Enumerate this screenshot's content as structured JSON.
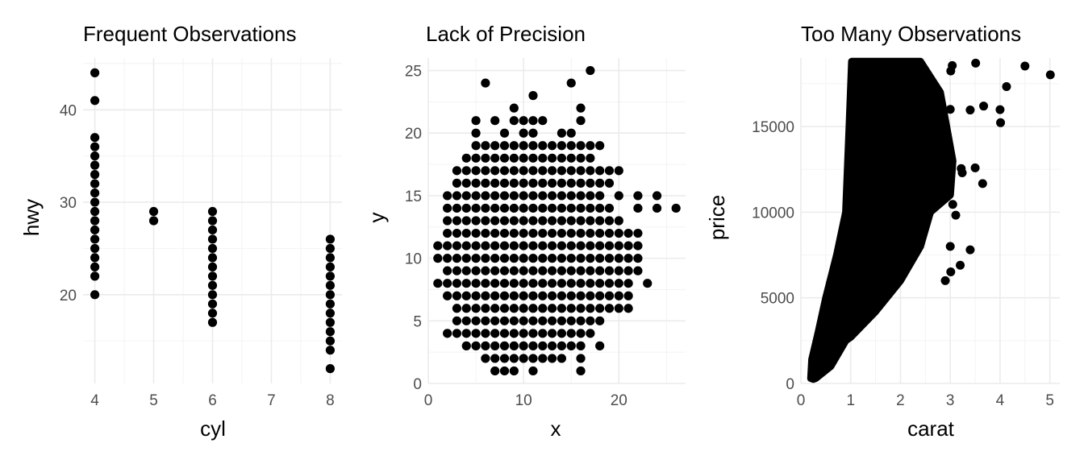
{
  "chart_data": [
    {
      "type": "scatter",
      "title": "Frequent Observations",
      "xlabel": "cyl",
      "ylabel": "hwy",
      "xlim": [
        3.8,
        8.2
      ],
      "ylim": [
        10.4,
        45.6
      ],
      "xticks": [
        4,
        5,
        6,
        7,
        8
      ],
      "yticks": [
        20,
        30,
        40
      ],
      "grid": true,
      "point_color": "#000000",
      "points": [
        [
          4,
          20
        ],
        [
          4,
          22
        ],
        [
          4,
          23
        ],
        [
          4,
          24
        ],
        [
          4,
          25
        ],
        [
          4,
          26
        ],
        [
          4,
          27
        ],
        [
          4,
          28
        ],
        [
          4,
          29
        ],
        [
          4,
          30
        ],
        [
          4,
          31
        ],
        [
          4,
          32
        ],
        [
          4,
          33
        ],
        [
          4,
          34
        ],
        [
          4,
          35
        ],
        [
          4,
          36
        ],
        [
          4,
          37
        ],
        [
          4,
          41
        ],
        [
          4,
          44
        ],
        [
          5,
          28
        ],
        [
          5,
          29
        ],
        [
          6,
          17
        ],
        [
          6,
          18
        ],
        [
          6,
          19
        ],
        [
          6,
          20
        ],
        [
          6,
          21
        ],
        [
          6,
          22
        ],
        [
          6,
          23
        ],
        [
          6,
          24
        ],
        [
          6,
          25
        ],
        [
          6,
          26
        ],
        [
          6,
          27
        ],
        [
          6,
          28
        ],
        [
          6,
          29
        ],
        [
          8,
          12
        ],
        [
          8,
          14
        ],
        [
          8,
          15
        ],
        [
          8,
          16
        ],
        [
          8,
          17
        ],
        [
          8,
          18
        ],
        [
          8,
          19
        ],
        [
          8,
          20
        ],
        [
          8,
          21
        ],
        [
          8,
          22
        ],
        [
          8,
          23
        ],
        [
          8,
          24
        ],
        [
          8,
          25
        ],
        [
          8,
          26
        ]
      ]
    },
    {
      "type": "scatter",
      "title": "Lack of Precision",
      "xlabel": "x",
      "ylabel": "y",
      "xlim": [
        0,
        27
      ],
      "ylim": [
        0,
        26
      ],
      "xticks": [
        0,
        10,
        20
      ],
      "yticks": [
        0,
        5,
        10,
        15,
        20,
        25
      ],
      "grid": true,
      "point_color": "#000000",
      "rows": [
        {
          "y": 1,
          "x": [
            [
              7,
              9
            ],
            [
              11,
              11
            ],
            [
              16,
              16
            ]
          ]
        },
        {
          "y": 2,
          "x": [
            [
              6,
              14
            ],
            [
              16,
              16
            ]
          ]
        },
        {
          "y": 3,
          "x": [
            [
              4,
              16
            ],
            [
              18,
              18
            ]
          ]
        },
        {
          "y": 4,
          "x": [
            [
              2,
              17
            ]
          ]
        },
        {
          "y": 5,
          "x": [
            [
              3,
              18
            ]
          ]
        },
        {
          "y": 6,
          "x": [
            [
              3,
              21
            ]
          ]
        },
        {
          "y": 7,
          "x": [
            [
              2,
              21
            ]
          ]
        },
        {
          "y": 8,
          "x": [
            [
              1,
              21
            ],
            [
              23,
              23
            ]
          ]
        },
        {
          "y": 9,
          "x": [
            [
              2,
              22
            ]
          ]
        },
        {
          "y": 10,
          "x": [
            [
              1,
              22
            ]
          ]
        },
        {
          "y": 11,
          "x": [
            [
              1,
              22
            ]
          ]
        },
        {
          "y": 12,
          "x": [
            [
              2,
              22
            ]
          ]
        },
        {
          "y": 13,
          "x": [
            [
              2,
              20
            ]
          ]
        },
        {
          "y": 14,
          "x": [
            [
              2,
              19
            ],
            [
              22,
              22
            ],
            [
              24,
              24
            ],
            [
              26,
              26
            ]
          ]
        },
        {
          "y": 15,
          "x": [
            [
              2,
              18
            ],
            [
              20,
              20
            ],
            [
              22,
              22
            ],
            [
              24,
              24
            ]
          ]
        },
        {
          "y": 16,
          "x": [
            [
              3,
              19
            ]
          ]
        },
        {
          "y": 17,
          "x": [
            [
              3,
              20
            ]
          ]
        },
        {
          "y": 18,
          "x": [
            [
              4,
              17
            ]
          ]
        },
        {
          "y": 19,
          "x": [
            [
              5,
              18
            ]
          ]
        },
        {
          "y": 20,
          "x": [
            [
              5,
              5
            ],
            [
              8,
              8
            ],
            [
              10,
              11
            ],
            [
              14,
              15
            ]
          ]
        },
        {
          "y": 21,
          "x": [
            [
              5,
              5
            ],
            [
              7,
              7
            ],
            [
              9,
              12
            ],
            [
              16,
              16
            ]
          ]
        },
        {
          "y": 22,
          "x": [
            [
              9,
              9
            ],
            [
              16,
              16
            ]
          ]
        },
        {
          "y": 23,
          "x": [
            [
              11,
              11
            ]
          ]
        },
        {
          "y": 24,
          "x": [
            [
              6,
              6
            ],
            [
              15,
              15
            ]
          ]
        },
        {
          "y": 25,
          "x": [
            [
              17,
              17
            ]
          ]
        }
      ]
    },
    {
      "type": "scatter",
      "title": "Too Many Observations",
      "xlabel": "carat",
      "ylabel": "price",
      "xlim": [
        0,
        5.2
      ],
      "ylim": [
        0,
        19000
      ],
      "xticks": [
        0,
        1,
        2,
        3,
        4,
        5
      ],
      "yticks": [
        0,
        5000,
        10000,
        15000
      ],
      "grid": true,
      "point_color": "#000000",
      "dense_region": [
        [
          0.2,
          300
        ],
        [
          0.25,
          250
        ],
        [
          0.3,
          300
        ],
        [
          0.6,
          1000
        ],
        [
          0.9,
          2500
        ],
        [
          1.0,
          2700
        ],
        [
          1.5,
          4200
        ],
        [
          2.0,
          6000
        ],
        [
          2.4,
          8000
        ],
        [
          2.6,
          10000
        ],
        [
          3.0,
          11000
        ],
        [
          3.05,
          13000
        ],
        [
          2.8,
          17000
        ],
        [
          2.4,
          18800
        ],
        [
          1.02,
          18800
        ],
        [
          0.97,
          15000
        ],
        [
          0.9,
          10000
        ],
        [
          0.72,
          7500
        ],
        [
          0.5,
          5000
        ],
        [
          0.35,
          3000
        ],
        [
          0.22,
          1400
        ]
      ],
      "points": [
        [
          5.01,
          18018
        ],
        [
          4.5,
          18531
        ],
        [
          4.13,
          17329
        ],
        [
          4.0,
          15984
        ],
        [
          4.01,
          15223
        ],
        [
          3.67,
          16193
        ],
        [
          3.51,
          18701
        ],
        [
          3.4,
          15964
        ],
        [
          3.24,
          12300
        ],
        [
          3.22,
          12545
        ],
        [
          3.5,
          12587
        ],
        [
          3.65,
          11668
        ],
        [
          3.04,
          18559
        ],
        [
          3.01,
          18242
        ],
        [
          3.0,
          16000
        ],
        [
          3.0,
          8000
        ],
        [
          3.01,
          6512
        ],
        [
          3.11,
          9823
        ],
        [
          3.05,
          10453
        ],
        [
          3.4,
          7800
        ],
        [
          3.2,
          6900
        ],
        [
          2.9,
          6000
        ]
      ]
    }
  ]
}
